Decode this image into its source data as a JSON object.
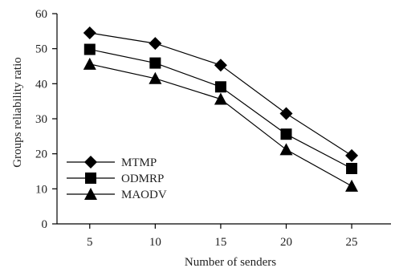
{
  "chart_data": {
    "type": "line",
    "title": "",
    "xlabel": "Number of senders",
    "ylabel": "Groups reliability ratio",
    "categories": [
      5,
      10,
      15,
      20,
      25
    ],
    "xlim": [
      2.5,
      28
    ],
    "ylim": [
      0,
      60
    ],
    "y_ticks": [
      0,
      10,
      20,
      30,
      40,
      50,
      60
    ],
    "x_ticks": [
      5,
      10,
      15,
      20,
      25
    ],
    "grid": false,
    "legend_position": "bottom-left",
    "series": [
      {
        "name": "MTMP",
        "marker": "diamond",
        "values": [
          54.5,
          51.5,
          45.3,
          31.5,
          19.5
        ]
      },
      {
        "name": "ODMRP",
        "marker": "square",
        "values": [
          49.8,
          45.9,
          39.1,
          25.6,
          15.8
        ]
      },
      {
        "name": "MAODV",
        "marker": "triangle",
        "values": [
          45.6,
          41.5,
          35.6,
          21.2,
          10.8
        ]
      }
    ],
    "colors": {
      "line": "#000000",
      "marker": "#000000",
      "axis": "#000000"
    }
  }
}
